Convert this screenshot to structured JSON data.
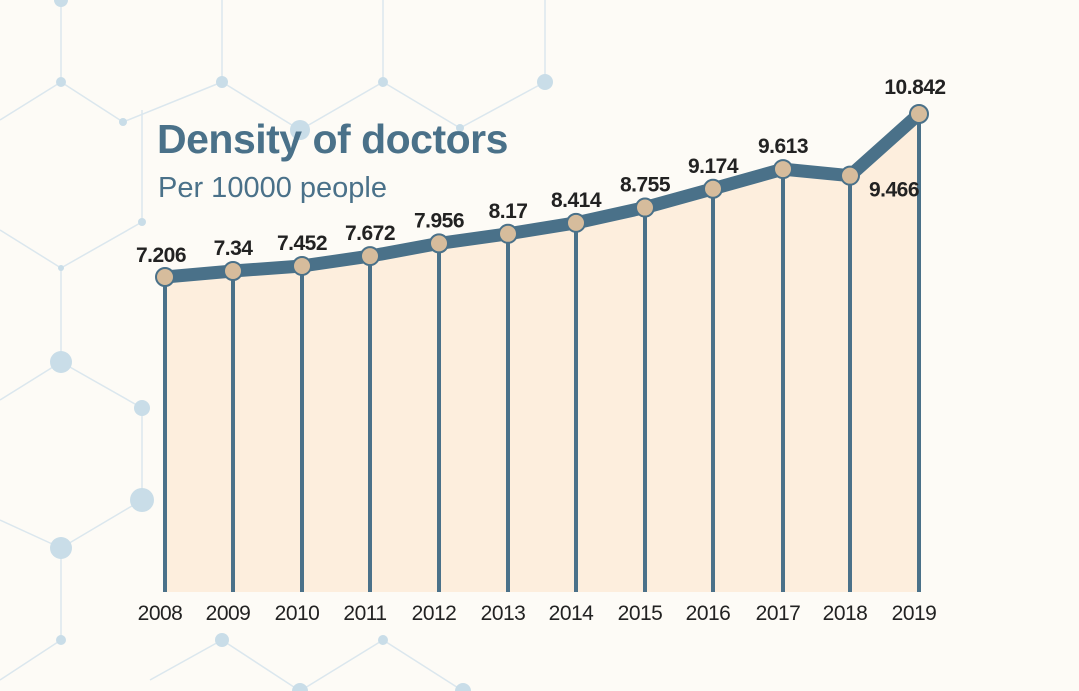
{
  "colors": {
    "background": "#fdfbf6",
    "line": "#4a7189",
    "marker_fill": "#d6bc9c",
    "area_fill": "#fdeedd",
    "title": "#4a7189",
    "label": "#222222",
    "decor": "#c9dde8"
  },
  "chart_data": {
    "type": "area",
    "title": "Density of doctors",
    "subtitle": "Per 10000 people",
    "xlabel": "",
    "ylabel": "",
    "categories": [
      "2008",
      "2009",
      "2010",
      "2011",
      "2012",
      "2013",
      "2014",
      "2015",
      "2016",
      "2017",
      "2018",
      "2019"
    ],
    "series": [
      {
        "name": "Density of doctors",
        "values": [
          7.206,
          7.34,
          7.452,
          7.672,
          7.956,
          8.17,
          8.414,
          8.755,
          9.174,
          9.613,
          9.466,
          10.842
        ],
        "labels": [
          "7.206",
          "7.34",
          "7.452",
          "7.672",
          "7.956",
          "8.17",
          "8.414",
          "8.755",
          "9.174",
          "9.613",
          "9.466",
          "10.842"
        ]
      }
    ],
    "grid": false,
    "legend": "none",
    "y_axis_visible": false
  }
}
